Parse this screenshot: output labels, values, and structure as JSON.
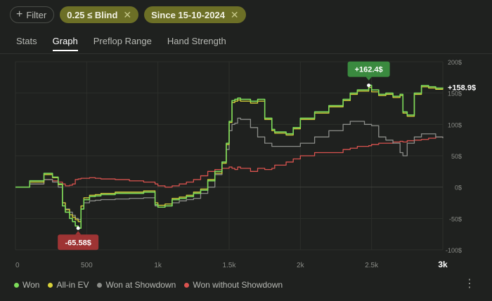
{
  "filters": {
    "filter_label": "Filter",
    "active": [
      {
        "label": "0.25 ≤ Blind"
      },
      {
        "label": "Since 15-10-2024"
      }
    ]
  },
  "tabs": [
    {
      "label": "Stats",
      "active": false
    },
    {
      "label": "Graph",
      "active": true
    },
    {
      "label": "Preflop Range",
      "active": false
    },
    {
      "label": "Hand Strength",
      "active": false
    }
  ],
  "legend": [
    {
      "label": "Won",
      "color": "#7ddc5a"
    },
    {
      "label": "All-in EV",
      "color": "#d8d23a"
    },
    {
      "label": "Won at Showdown",
      "color": "#8c8e8a"
    },
    {
      "label": "Won without Showdown",
      "color": "#d9534f"
    }
  ],
  "chart_data": {
    "type": "line",
    "xlim": [
      0,
      3000
    ],
    "ylim": [
      -100,
      200
    ],
    "x_ticks": [
      "0",
      "500",
      "1k",
      "1.5k",
      "2k",
      "2.5k",
      "3k"
    ],
    "y_ticks": [
      "200$",
      "150$",
      "100$",
      "50$",
      "0$",
      "-50$",
      "-100$"
    ],
    "grid": true,
    "legend_position": "bottom",
    "current_value_label": "+158.9$",
    "max_label": "+162.4$",
    "min_label": "-65.58$",
    "series": [
      {
        "name": "Won",
        "color": "#7ddc5a",
        "x": [
          0,
          100,
          200,
          260,
          300,
          330,
          350,
          380,
          400,
          420,
          440,
          460,
          480,
          520,
          560,
          600,
          700,
          800,
          900,
          980,
          1000,
          1050,
          1100,
          1150,
          1200,
          1250,
          1300,
          1350,
          1400,
          1450,
          1480,
          1500,
          1520,
          1540,
          1560,
          1580,
          1650,
          1700,
          1750,
          1800,
          1820,
          1900,
          1950,
          2000,
          2100,
          2200,
          2300,
          2350,
          2400,
          2450,
          2480,
          2500,
          2550,
          2600,
          2650,
          2700,
          2720,
          2750,
          2800,
          2850,
          2900,
          2950,
          3000
        ],
        "y": [
          0,
          10,
          22,
          16,
          5,
          -30,
          -40,
          -50,
          -55,
          -62,
          -65.58,
          -35,
          -20,
          -15,
          -14,
          -12,
          -10,
          -10,
          -8,
          -28,
          -32,
          -30,
          -20,
          -18,
          -15,
          -10,
          -5,
          10,
          25,
          40,
          70,
          105,
          138,
          140,
          142,
          140,
          137,
          140,
          110,
          92,
          88,
          85,
          95,
          110,
          120,
          130,
          140,
          150,
          155,
          155,
          162.4,
          155,
          148,
          150,
          145,
          148,
          120,
          115,
          150,
          162,
          160,
          158,
          158.9
        ]
      },
      {
        "name": "All-in EV",
        "color": "#d8d23a",
        "x": [
          0,
          100,
          200,
          260,
          300,
          330,
          350,
          380,
          400,
          420,
          440,
          460,
          480,
          520,
          560,
          600,
          700,
          800,
          900,
          980,
          1000,
          1050,
          1100,
          1150,
          1200,
          1250,
          1300,
          1350,
          1400,
          1450,
          1480,
          1500,
          1520,
          1540,
          1560,
          1580,
          1650,
          1700,
          1750,
          1800,
          1820,
          1900,
          1950,
          2000,
          2100,
          2200,
          2300,
          2350,
          2400,
          2450,
          2480,
          2500,
          2550,
          2600,
          2650,
          2700,
          2720,
          2750,
          2800,
          2850,
          2900,
          2950,
          3000
        ],
        "y": [
          0,
          8,
          20,
          15,
          4,
          -25,
          -36,
          -44,
          -48,
          -52,
          -55,
          -30,
          -17,
          -13,
          -12,
          -10,
          -8,
          -8,
          -6,
          -25,
          -29,
          -27,
          -18,
          -16,
          -13,
          -8,
          -3,
          12,
          22,
          38,
          68,
          103,
          135,
          137,
          139,
          137,
          134,
          137,
          108,
          90,
          86,
          83,
          93,
          108,
          118,
          128,
          138,
          148,
          153,
          153,
          159,
          152,
          146,
          148,
          143,
          146,
          118,
          113,
          148,
          160,
          158,
          156,
          157
        ]
      },
      {
        "name": "Won at Showdown",
        "color": "#8c8e8a",
        "x": [
          0,
          100,
          200,
          260,
          300,
          330,
          350,
          380,
          400,
          420,
          440,
          460,
          480,
          520,
          560,
          600,
          700,
          800,
          900,
          980,
          1000,
          1050,
          1100,
          1150,
          1200,
          1250,
          1300,
          1350,
          1400,
          1450,
          1480,
          1500,
          1520,
          1540,
          1560,
          1580,
          1650,
          1700,
          1750,
          1800,
          1820,
          1900,
          1950,
          2000,
          2100,
          2200,
          2300,
          2350,
          2400,
          2450,
          2480,
          2500,
          2550,
          2600,
          2650,
          2700,
          2720,
          2750,
          2800,
          2850,
          2900,
          2950,
          3000
        ],
        "y": [
          0,
          5,
          12,
          8,
          0,
          -25,
          -35,
          -40,
          -45,
          -50,
          -52,
          -30,
          -25,
          -22,
          -21,
          -20,
          -19,
          -18,
          -17,
          -30,
          -32,
          -30,
          -25,
          -22,
          -20,
          -18,
          -10,
          0,
          20,
          40,
          60,
          90,
          100,
          102,
          110,
          108,
          95,
          80,
          70,
          65,
          65,
          65,
          65,
          70,
          80,
          90,
          100,
          105,
          105,
          100,
          100,
          98,
          80,
          75,
          70,
          55,
          50,
          70,
          80,
          85,
          85,
          80,
          78
        ]
      },
      {
        "name": "Won without Showdown",
        "color": "#d9534f",
        "x": [
          0,
          100,
          200,
          260,
          300,
          330,
          350,
          380,
          400,
          420,
          440,
          460,
          480,
          520,
          560,
          600,
          700,
          800,
          900,
          980,
          1000,
          1050,
          1100,
          1150,
          1200,
          1250,
          1300,
          1350,
          1400,
          1450,
          1480,
          1500,
          1520,
          1540,
          1560,
          1580,
          1650,
          1700,
          1750,
          1800,
          1820,
          1900,
          1950,
          2000,
          2100,
          2200,
          2300,
          2350,
          2400,
          2450,
          2480,
          2500,
          2550,
          2600,
          2650,
          2700,
          2720,
          2750,
          2800,
          2850,
          2900,
          2950,
          3000
        ],
        "y": [
          0,
          5,
          12,
          10,
          8,
          5,
          2,
          3,
          5,
          12,
          13,
          14,
          14,
          15,
          14,
          13,
          12,
          10,
          8,
          5,
          2,
          0,
          2,
          5,
          8,
          12,
          18,
          25,
          28,
          30,
          30,
          32,
          30,
          28,
          32,
          30,
          25,
          30,
          28,
          30,
          35,
          40,
          45,
          50,
          55,
          55,
          60,
          62,
          65,
          65,
          66,
          68,
          70,
          70,
          72,
          73,
          72,
          74,
          75,
          76,
          78,
          80,
          80
        ]
      }
    ]
  }
}
